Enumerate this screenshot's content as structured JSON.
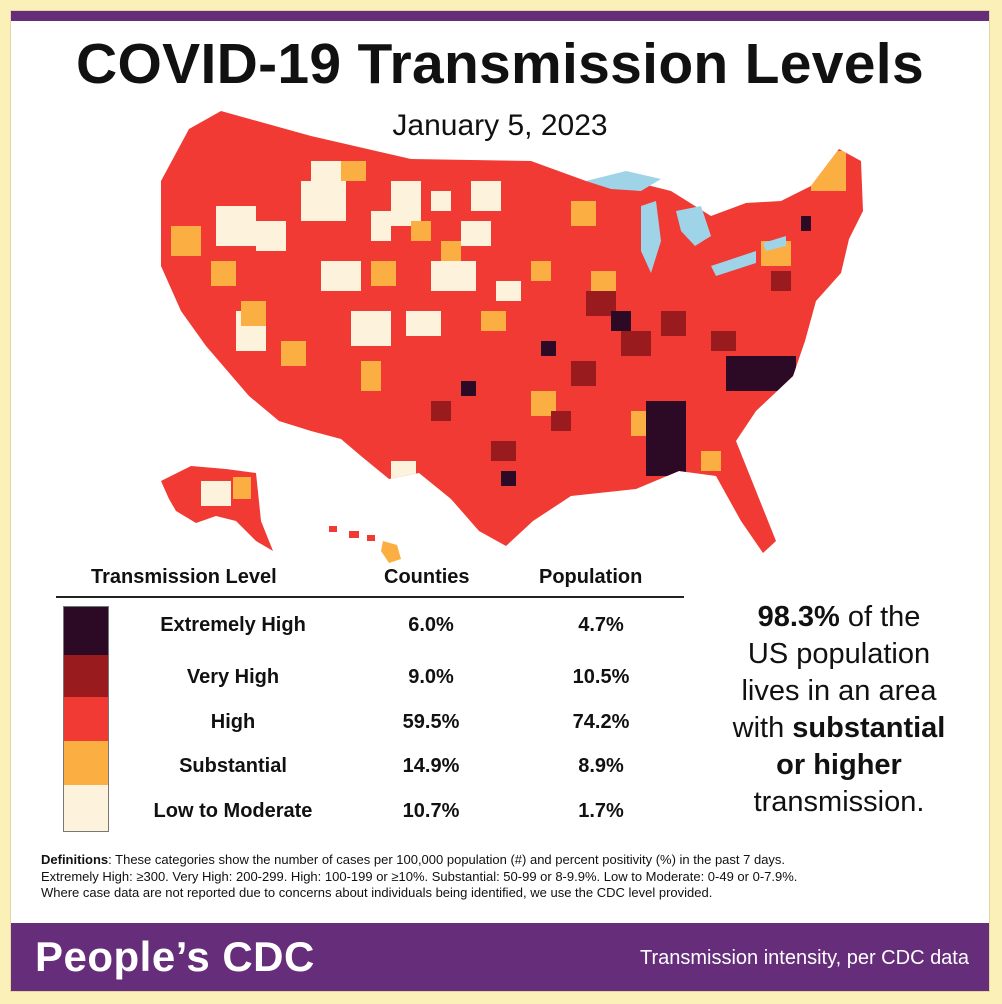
{
  "title": "COVID-19 Transmission Levels",
  "date": "January 5, 2023",
  "colors": {
    "extremely_high": "#2c0a26",
    "very_high": "#9a1b1e",
    "high": "#f03a33",
    "substantial": "#fbae42",
    "low_to_moderate": "#fdf3dc",
    "water": "#9fd3e8",
    "brand_purple": "#662d7a"
  },
  "table": {
    "headers": {
      "level": "Transmission Level",
      "counties": "Counties",
      "population": "Population"
    },
    "rows": [
      {
        "level": "Extremely High",
        "counties": "6.0%",
        "population": "4.7%",
        "color": "#2c0a26"
      },
      {
        "level": "Very High",
        "counties": "9.0%",
        "population": "10.5%",
        "color": "#9a1b1e"
      },
      {
        "level": "High",
        "counties": "59.5%",
        "population": "74.2%",
        "color": "#f03a33"
      },
      {
        "level": "Substantial",
        "counties": "14.9%",
        "population": "8.9%",
        "color": "#fbae42"
      },
      {
        "level": "Low to Moderate",
        "counties": "10.7%",
        "population": "1.7%",
        "color": "#fdf3dc"
      }
    ]
  },
  "summary": {
    "percent": "98.3%",
    "line1": "of the",
    "line2": "US population",
    "line3": "lives in an area",
    "line4_pre": "with",
    "line4_bold": "substantial",
    "line5": "or higher",
    "line6": "transmission."
  },
  "definitions": {
    "label": "Definitions",
    "line1": ": These categories show the number of cases per 100,000 population (#) and percent positivity (%) in the past 7 days.",
    "line2": "Extremely High: ≥300. Very High: 200-299. High: 100-199 or ≥10%. Substantial: 50-99 or 8-9.9%. Low to Moderate: 0-49 or 0-7.9%.",
    "line3": "Where case data are not reported due to concerns about individuals being identified, we use the CDC level provided."
  },
  "footer": {
    "brand": "People’s CDC",
    "tagline": "Transmission intensity, per CDC data"
  }
}
